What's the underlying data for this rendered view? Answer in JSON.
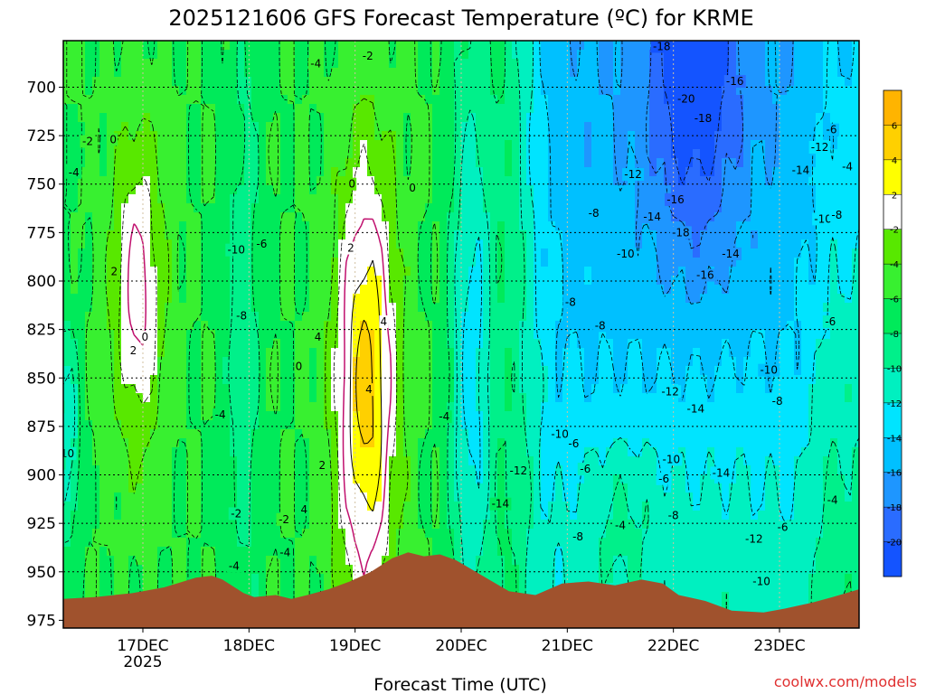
{
  "chart_data": {
    "type": "heatmap",
    "title": "2025121606 GFS Forecast Temperature (ºC) for KRME",
    "xlabel": "Forecast Time (UTC)",
    "ylabel": "",
    "x_ticks": [
      "17DEC",
      "18DEC",
      "19DEC",
      "20DEC",
      "21DEC",
      "22DEC",
      "23DEC"
    ],
    "x_tick_sub": "2025",
    "x_range_days": [
      16.25,
      23.75
    ],
    "y_ticks": [
      700,
      725,
      750,
      775,
      800,
      825,
      850,
      875,
      900,
      925,
      950,
      975
    ],
    "y_range_hpa": [
      676,
      979
    ],
    "colorbar_labels": [
      "6",
      "4",
      "2",
      "-2",
      "-4",
      "-6",
      "-8",
      "-10",
      "-12",
      "-14",
      "-16",
      "-18",
      "-20"
    ],
    "colorbar_colors": [
      "#ffb400",
      "#ffd000",
      "#ffff00",
      "#ffffff",
      "#58e800",
      "#38f030",
      "#00ea5a",
      "#00f08a",
      "#00f0c0",
      "#00e4ff",
      "#00c0ff",
      "#1e96ff",
      "#2a6cff",
      "#1454ff"
    ],
    "contour_labels": [
      {
        "text": "-2",
        "day": 16.48,
        "p": 728
      },
      {
        "text": "0",
        "day": 16.72,
        "p": 727
      },
      {
        "text": "2",
        "day": 16.73,
        "p": 795
      },
      {
        "text": "2",
        "day": 16.91,
        "p": 836
      },
      {
        "text": "0",
        "day": 17.02,
        "p": 829
      },
      {
        "text": "-4",
        "day": 16.35,
        "p": 744
      },
      {
        "text": "-2",
        "day": 16.18,
        "p": 852
      },
      {
        "text": "-4",
        "day": 16.19,
        "p": 865
      },
      {
        "text": "-6",
        "day": 16.21,
        "p": 878
      },
      {
        "text": "-10",
        "day": 16.27,
        "p": 889
      },
      {
        "text": "-12",
        "day": 16.17,
        "p": 894
      },
      {
        "text": "-4",
        "day": 17.73,
        "p": 869
      },
      {
        "text": "-10",
        "day": 17.88,
        "p": 784
      },
      {
        "text": "-6",
        "day": 18.12,
        "p": 781
      },
      {
        "text": "-8",
        "day": 17.93,
        "p": 818
      },
      {
        "text": "-2",
        "day": 17.88,
        "p": 920
      },
      {
        "text": "-2",
        "day": 18.33,
        "p": 923
      },
      {
        "text": "-4",
        "day": 18.34,
        "p": 940
      },
      {
        "text": "-4",
        "day": 17.86,
        "p": 947
      },
      {
        "text": "0",
        "day": 18.47,
        "p": 844
      },
      {
        "text": "0",
        "day": 18.97,
        "p": 750
      },
      {
        "text": "0",
        "day": 19.54,
        "p": 752
      },
      {
        "text": "2",
        "day": 18.96,
        "p": 783
      },
      {
        "text": "4",
        "day": 18.65,
        "p": 829
      },
      {
        "text": "4",
        "day": 19.27,
        "p": 821
      },
      {
        "text": "4",
        "day": 19.13,
        "p": 856
      },
      {
        "text": "2",
        "day": 18.69,
        "p": 895
      },
      {
        "text": "4",
        "day": 18.52,
        "p": 918
      },
      {
        "text": "-4",
        "day": 18.63,
        "p": 688
      },
      {
        "text": "-2",
        "day": 19.12,
        "p": 684
      },
      {
        "text": "-4",
        "day": 19.84,
        "p": 870
      },
      {
        "text": "-12",
        "day": 20.54,
        "p": 898
      },
      {
        "text": "-14",
        "day": 20.37,
        "p": 915
      },
      {
        "text": "-10",
        "day": 20.93,
        "p": 879
      },
      {
        "text": "-6",
        "day": 21.06,
        "p": 884
      },
      {
        "text": "-6",
        "day": 21.17,
        "p": 897
      },
      {
        "text": "-8",
        "day": 21.03,
        "p": 811
      },
      {
        "text": "-8",
        "day": 21.31,
        "p": 823
      },
      {
        "text": "-8",
        "day": 21.25,
        "p": 765
      },
      {
        "text": "-10",
        "day": 21.55,
        "p": 786
      },
      {
        "text": "-12",
        "day": 21.62,
        "p": 745
      },
      {
        "text": "-14",
        "day": 21.8,
        "p": 767
      },
      {
        "text": "-16",
        "day": 22.02,
        "p": 758
      },
      {
        "text": "-18",
        "day": 22.07,
        "p": 775
      },
      {
        "text": "-18",
        "day": 22.28,
        "p": 716
      },
      {
        "text": "-20",
        "day": 22.12,
        "p": 706
      },
      {
        "text": "-16",
        "day": 22.58,
        "p": 697
      },
      {
        "text": "-18",
        "day": 21.89,
        "p": 679
      },
      {
        "text": "-14",
        "day": 22.54,
        "p": 786
      },
      {
        "text": "-16",
        "day": 22.3,
        "p": 797
      },
      {
        "text": "-12",
        "day": 21.97,
        "p": 857
      },
      {
        "text": "-14",
        "day": 22.21,
        "p": 866
      },
      {
        "text": "-10",
        "day": 21.98,
        "p": 892
      },
      {
        "text": "-14",
        "day": 22.45,
        "p": 899
      },
      {
        "text": "-8",
        "day": 22.0,
        "p": 921
      },
      {
        "text": "-6",
        "day": 21.91,
        "p": 902
      },
      {
        "text": "-4",
        "day": 21.5,
        "p": 926
      },
      {
        "text": "-8",
        "day": 21.1,
        "p": 932
      },
      {
        "text": "-10",
        "day": 22.9,
        "p": 846
      },
      {
        "text": "-8",
        "day": 22.98,
        "p": 862
      },
      {
        "text": "-12",
        "day": 22.76,
        "p": 933
      },
      {
        "text": "-6",
        "day": 23.03,
        "p": 927
      },
      {
        "text": "-10",
        "day": 22.83,
        "p": 955
      },
      {
        "text": "-12",
        "day": 23.38,
        "p": 731
      },
      {
        "text": "-14",
        "day": 23.2,
        "p": 743
      },
      {
        "text": "-6",
        "day": 23.49,
        "p": 722
      },
      {
        "text": "-4",
        "day": 23.64,
        "p": 741
      },
      {
        "text": "-10",
        "day": 23.41,
        "p": 768
      },
      {
        "text": "-8",
        "day": 23.54,
        "p": 766
      },
      {
        "text": "-6",
        "day": 23.48,
        "p": 821
      },
      {
        "text": "-4",
        "day": 23.5,
        "p": 913
      }
    ]
  },
  "credit": "coolwx.com/models"
}
